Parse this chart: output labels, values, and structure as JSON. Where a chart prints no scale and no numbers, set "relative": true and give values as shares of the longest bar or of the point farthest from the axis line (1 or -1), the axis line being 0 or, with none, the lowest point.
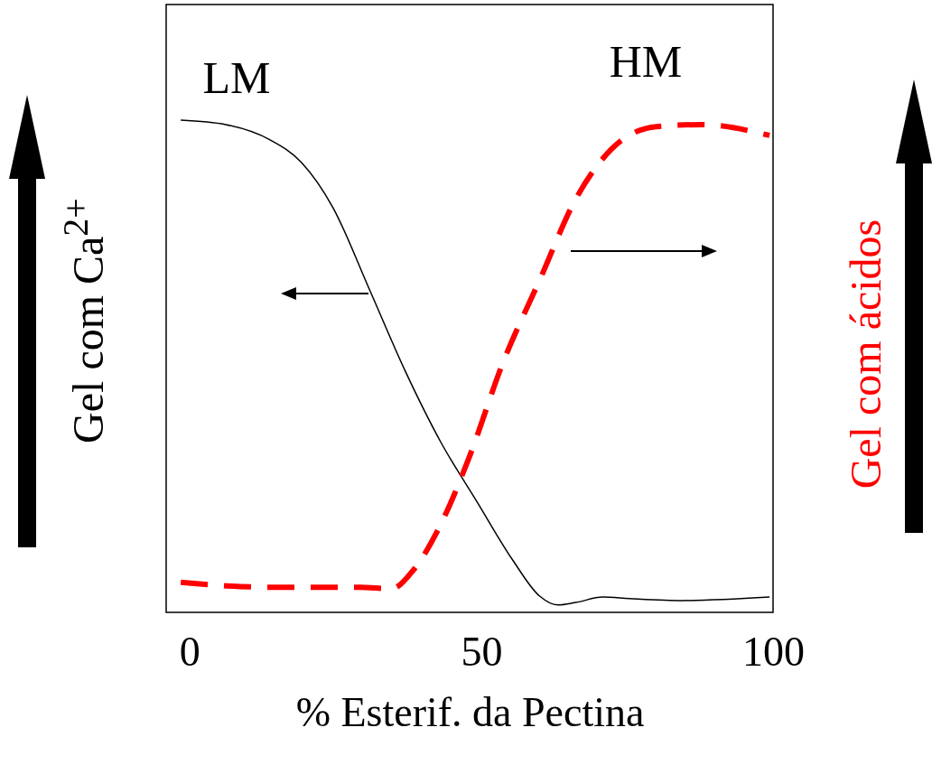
{
  "chart_data": {
    "type": "line",
    "relative": true,
    "xlabel": "% Esterif. da Pectina",
    "ylabel": "Gel com Ca$^{2+}$",
    "y2label": "Gel com ácidos",
    "xlim": [
      -4,
      100
    ],
    "xticks": [
      0,
      50,
      100
    ],
    "grid": false,
    "marker": "none",
    "annotations": [
      "LM",
      "HM"
    ],
    "series": [
      {
        "color": "#000000",
        "line_style": "solid",
        "x": [
          -1.5,
          6.2,
          13.8,
          19.2,
          24.6,
          30.8,
          36.9,
          43.1,
          49.2,
          55.4,
          60,
          63.1,
          66.2,
          70.8,
          75.4,
          84.6,
          99.4
        ],
        "values": [
          1,
          0.991,
          0.96,
          0.914,
          0.822,
          0.657,
          0.492,
          0.345,
          0.226,
          0.106,
          0.033,
          0.015,
          0.02,
          0.031,
          0.028,
          0.024,
          0.031
        ]
      },
      {
        "color": "#ff0000",
        "line_style": "dashed",
        "axis": "y2",
        "x": [
          -1.5,
          13.8,
          29.2,
          34.6,
          38.5,
          43.1,
          47.7,
          53.8,
          60,
          66.2,
          72.3,
          80,
          87.7,
          99.4
        ],
        "values": [
          0.061,
          0.051,
          0.051,
          0.048,
          0.088,
          0.18,
          0.308,
          0.51,
          0.675,
          0.84,
          0.941,
          0.987,
          0.991,
          0.969
        ]
      }
    ]
  }
}
